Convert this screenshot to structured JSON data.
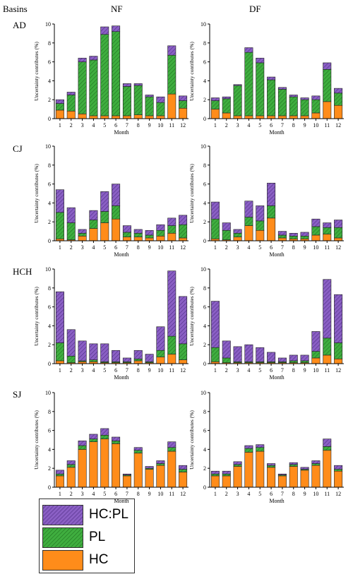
{
  "header": {
    "basins_label": "Basins",
    "col_nf": "NF",
    "col_df": "DF"
  },
  "basins": [
    "AD",
    "CJ",
    "HCH",
    "SJ"
  ],
  "axes": {
    "ylabel": "Uncertainty contributes (%)",
    "xlabel": "Month"
  },
  "legend": [
    {
      "label": "HC:PL",
      "color": "#8a5fc4"
    },
    {
      "label": "PL",
      "color": "#3fae3f"
    },
    {
      "label": "HC",
      "color": "#ff8c1a"
    }
  ],
  "chart_data": [
    {
      "type": "bar",
      "stacked": true,
      "basin": "AD",
      "panel": "NF",
      "categories": [
        "1",
        "2",
        "3",
        "4",
        "5",
        "6",
        "7",
        "8",
        "9",
        "10",
        "11",
        "12"
      ],
      "ylim": [
        0,
        10
      ],
      "yticks": [
        0,
        2,
        4,
        6,
        8,
        10
      ],
      "series": [
        {
          "name": "HC",
          "values": [
            0.9,
            0.8,
            0.5,
            0.3,
            0.3,
            0.3,
            0.3,
            0.4,
            0.3,
            0.3,
            2.6,
            1.1
          ]
        },
        {
          "name": "PL",
          "values": [
            0.7,
            1.7,
            5.5,
            5.9,
            8.6,
            8.9,
            3.1,
            3.1,
            2.0,
            1.4,
            4.1,
            0.8
          ]
        },
        {
          "name": "HC:PL",
          "values": [
            0.4,
            0.3,
            0.4,
            0.4,
            0.8,
            0.6,
            0.3,
            0.2,
            0.2,
            0.6,
            1.0,
            0.5
          ]
        }
      ]
    },
    {
      "type": "bar",
      "stacked": true,
      "basin": "AD",
      "panel": "DF",
      "categories": [
        "1",
        "2",
        "3",
        "4",
        "5",
        "6",
        "7",
        "8",
        "9",
        "10",
        "11",
        "12"
      ],
      "ylim": [
        0,
        10
      ],
      "yticks": [
        0,
        2,
        4,
        6,
        8,
        10
      ],
      "series": [
        {
          "name": "HC",
          "values": [
            1.0,
            0.6,
            0.3,
            0.3,
            0.3,
            0.3,
            0.3,
            0.3,
            0.3,
            0.6,
            1.8,
            1.4
          ]
        },
        {
          "name": "PL",
          "values": [
            0.9,
            1.5,
            3.2,
            6.7,
            5.6,
            3.8,
            2.8,
            2.0,
            1.7,
            1.4,
            3.4,
            1.3
          ]
        },
        {
          "name": "HC:PL",
          "values": [
            0.3,
            0.2,
            0.1,
            0.5,
            0.5,
            0.3,
            0.2,
            0.2,
            0.2,
            0.4,
            0.7,
            0.5
          ]
        }
      ]
    },
    {
      "type": "bar",
      "stacked": true,
      "basin": "CJ",
      "panel": "NF",
      "categories": [
        "1",
        "2",
        "3",
        "4",
        "5",
        "6",
        "7",
        "8",
        "9",
        "10",
        "11",
        "12"
      ],
      "ylim": [
        0,
        10
      ],
      "yticks": [
        0,
        2,
        4,
        6,
        8,
        10
      ],
      "series": [
        {
          "name": "HC",
          "values": [
            0.2,
            0.1,
            0.5,
            1.3,
            1.9,
            2.3,
            0.4,
            0.4,
            0.3,
            0.5,
            0.8,
            0.3
          ]
        },
        {
          "name": "PL",
          "values": [
            2.8,
            1.8,
            0.3,
            0.9,
            1.2,
            1.4,
            0.5,
            0.4,
            0.3,
            0.6,
            0.8,
            1.4
          ]
        },
        {
          "name": "HC:PL",
          "values": [
            2.4,
            1.6,
            0.4,
            1.0,
            2.1,
            2.3,
            0.7,
            0.4,
            0.5,
            0.6,
            0.8,
            1.0
          ]
        }
      ]
    },
    {
      "type": "bar",
      "stacked": true,
      "basin": "CJ",
      "panel": "DF",
      "categories": [
        "1",
        "2",
        "3",
        "4",
        "5",
        "6",
        "7",
        "8",
        "9",
        "10",
        "11",
        "12"
      ],
      "ylim": [
        0,
        10
      ],
      "yticks": [
        0,
        2,
        4,
        6,
        8,
        10
      ],
      "series": [
        {
          "name": "HC",
          "values": [
            0.2,
            0.1,
            0.4,
            1.6,
            1.1,
            2.4,
            0.3,
            0.2,
            0.2,
            0.6,
            0.7,
            0.3
          ]
        },
        {
          "name": "PL",
          "values": [
            2.1,
            1.0,
            0.4,
            0.9,
            1.0,
            1.3,
            0.3,
            0.3,
            0.3,
            0.9,
            0.7,
            1.1
          ]
        },
        {
          "name": "HC:PL",
          "values": [
            1.8,
            0.8,
            0.4,
            1.7,
            1.6,
            2.4,
            0.4,
            0.3,
            0.4,
            0.8,
            0.5,
            0.8
          ]
        }
      ]
    },
    {
      "type": "bar",
      "stacked": true,
      "basin": "HCH",
      "panel": "NF",
      "categories": [
        "1",
        "2",
        "3",
        "4",
        "5",
        "6",
        "7",
        "8",
        "9",
        "10",
        "11",
        "12"
      ],
      "ylim": [
        0,
        10
      ],
      "yticks": [
        0,
        2,
        4,
        6,
        8,
        10
      ],
      "series": [
        {
          "name": "HC",
          "values": [
            0.3,
            0.1,
            0.2,
            0.2,
            0.1,
            0.1,
            0.1,
            0.3,
            0.1,
            0.7,
            1.0,
            0.4
          ]
        },
        {
          "name": "PL",
          "values": [
            1.9,
            0.7,
            0.1,
            0.2,
            0.1,
            0.1,
            0.1,
            0.2,
            0.1,
            0.7,
            1.9,
            1.7
          ]
        },
        {
          "name": "HC:PL",
          "values": [
            5.4,
            2.8,
            2.1,
            1.7,
            1.9,
            1.2,
            0.4,
            0.9,
            0.8,
            2.5,
            6.9,
            5.0
          ]
        }
      ]
    },
    {
      "type": "bar",
      "stacked": true,
      "basin": "HCH",
      "panel": "DF",
      "categories": [
        "1",
        "2",
        "3",
        "4",
        "5",
        "6",
        "7",
        "8",
        "9",
        "10",
        "11",
        "12"
      ],
      "ylim": [
        0,
        10
      ],
      "yticks": [
        0,
        2,
        4,
        6,
        8,
        10
      ],
      "series": [
        {
          "name": "HC",
          "values": [
            0.2,
            0.1,
            0.1,
            0.1,
            0.1,
            0.1,
            0.1,
            0.1,
            0.1,
            0.6,
            0.9,
            0.5
          ]
        },
        {
          "name": "PL",
          "values": [
            1.5,
            0.5,
            0.1,
            0.1,
            0.1,
            0.1,
            0.1,
            0.2,
            0.2,
            0.7,
            1.8,
            1.7
          ]
        },
        {
          "name": "HC:PL",
          "values": [
            4.9,
            1.8,
            1.6,
            1.8,
            1.5,
            1.0,
            0.4,
            0.6,
            0.6,
            2.1,
            6.2,
            5.1
          ]
        }
      ]
    },
    {
      "type": "bar",
      "stacked": true,
      "basin": "SJ",
      "panel": "NF",
      "categories": [
        "1",
        "2",
        "3",
        "4",
        "5",
        "6",
        "7",
        "8",
        "9",
        "10",
        "11",
        "12"
      ],
      "ylim": [
        0,
        10
      ],
      "yticks": [
        0,
        2,
        4,
        6,
        8,
        10
      ],
      "series": [
        {
          "name": "HC",
          "values": [
            1.2,
            2.1,
            4.0,
            4.8,
            5.1,
            4.6,
            1.2,
            3.6,
            1.9,
            2.3,
            3.8,
            1.6
          ]
        },
        {
          "name": "PL",
          "values": [
            0.2,
            0.3,
            0.4,
            0.3,
            0.4,
            0.3,
            0.1,
            0.3,
            0.1,
            0.2,
            0.4,
            0.3
          ]
        },
        {
          "name": "HC:PL",
          "values": [
            0.4,
            0.4,
            0.5,
            0.5,
            0.7,
            0.4,
            0.1,
            0.3,
            0.2,
            0.3,
            0.6,
            0.4
          ]
        }
      ]
    },
    {
      "type": "bar",
      "stacked": true,
      "basin": "SJ",
      "panel": "DF",
      "categories": [
        "1",
        "2",
        "3",
        "4",
        "5",
        "6",
        "7",
        "8",
        "9",
        "10",
        "11",
        "12"
      ],
      "ylim": [
        0,
        10
      ],
      "yticks": [
        0,
        2,
        4,
        6,
        8,
        10
      ],
      "series": [
        {
          "name": "HC",
          "values": [
            1.2,
            1.2,
            2.2,
            3.7,
            3.8,
            2.1,
            1.2,
            2.2,
            1.8,
            2.3,
            3.9,
            1.7
          ]
        },
        {
          "name": "PL",
          "values": [
            0.2,
            0.2,
            0.2,
            0.4,
            0.4,
            0.2,
            0.1,
            0.2,
            0.1,
            0.2,
            0.4,
            0.2
          ]
        },
        {
          "name": "HC:PL",
          "values": [
            0.3,
            0.3,
            0.3,
            0.3,
            0.3,
            0.2,
            0.1,
            0.2,
            0.2,
            0.3,
            0.8,
            0.4
          ]
        }
      ]
    }
  ]
}
